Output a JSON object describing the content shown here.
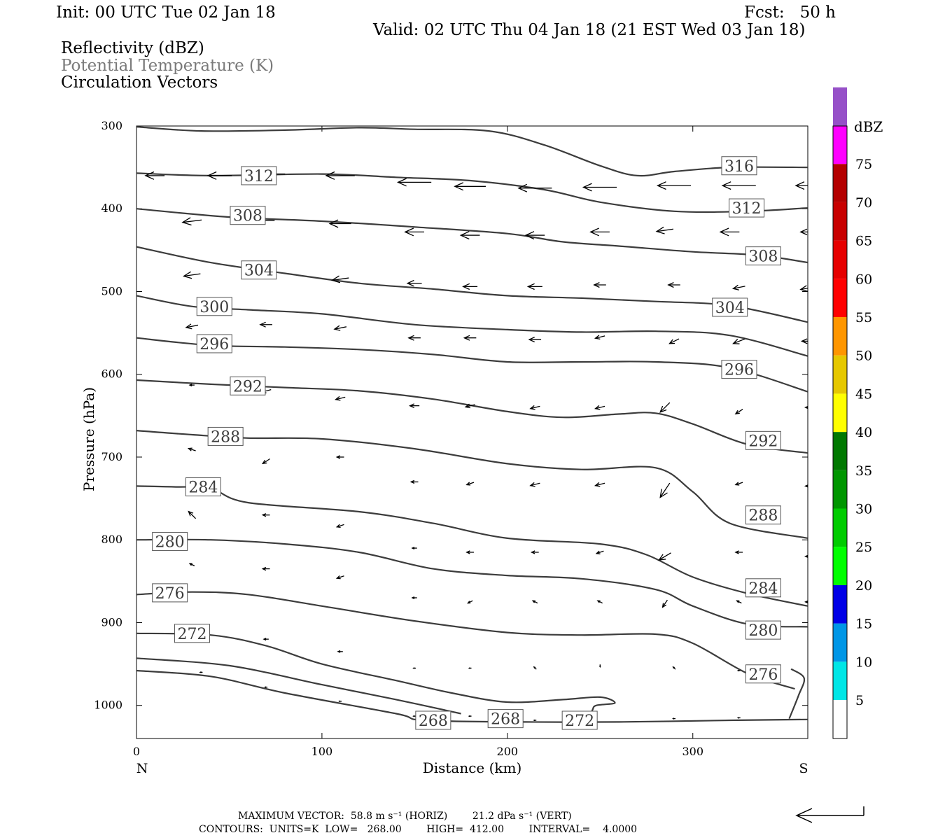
{
  "header": {
    "init": "Init: 00 UTC Tue 02 Jan 18",
    "fcst": "Fcst:   50 h",
    "valid": "Valid: 02 UTC Thu 04 Jan 18 (21 EST Wed 03 Jan 18)"
  },
  "fields": [
    {
      "label": "Reflectivity (dBZ)",
      "color": "#000000"
    },
    {
      "label": "Potential Temperature (K)",
      "color": "#7a7a7a"
    },
    {
      "label": "Circulation Vectors",
      "color": "#000000"
    }
  ],
  "footer": {
    "max_vector": "MAXIMUM VECTOR:  58.8 m s⁻¹ (HORIZ)        21.2 dPa s⁻¹ (VERT)",
    "contours": "CONTOURS:  UNITS=K  LOW=   268.00        HIGH=  412.00        INTERVAL=    4.0000"
  },
  "chart_data": {
    "type": "line",
    "xlabel": "Distance (km)",
    "ylabel": "Pressure (hPa)",
    "xlim": [
      0,
      362
    ],
    "ylim": [
      1040,
      300
    ],
    "x_ticks": [
      0,
      100,
      200,
      300
    ],
    "y_ticks": [
      300,
      400,
      500,
      600,
      700,
      800,
      900,
      1000
    ],
    "x_end_labels": {
      "left": "N",
      "right": "S"
    },
    "colorbar": {
      "title": "dBZ",
      "ticks": [
        5,
        10,
        15,
        20,
        25,
        30,
        35,
        40,
        45,
        50,
        55,
        60,
        65,
        70,
        75
      ],
      "colors": [
        "#00e6e6",
        "#0096e6",
        "#0000e6",
        "#00ff00",
        "#00cc00",
        "#009600",
        "#007800",
        "#ffff00",
        "#e6c800",
        "#ff9600",
        "#ff0000",
        "#e60000",
        "#c80000",
        "#b40000",
        "#ff00ff",
        "#9650c8"
      ]
    },
    "series": [
      {
        "label": "316",
        "points": [
          [
            0,
            301
          ],
          [
            35,
            306
          ],
          [
            80,
            305
          ],
          [
            120,
            302
          ],
          [
            150,
            304
          ],
          [
            190,
            306
          ],
          [
            220,
            323
          ],
          [
            250,
            348
          ],
          [
            270,
            360
          ],
          [
            290,
            355
          ],
          [
            320,
            350
          ],
          [
            362,
            350
          ]
        ],
        "labels_at": [
          [
            325,
            348
          ]
        ]
      },
      {
        "label": "312",
        "points": [
          [
            0,
            357
          ],
          [
            40,
            360
          ],
          [
            100,
            358
          ],
          [
            140,
            362
          ],
          [
            180,
            366
          ],
          [
            220,
            377
          ],
          [
            250,
            392
          ],
          [
            290,
            403
          ],
          [
            330,
            403
          ],
          [
            362,
            399
          ]
        ],
        "labels_at": [
          [
            66,
            360
          ],
          [
            329,
            399
          ]
        ]
      },
      {
        "label": "308",
        "points": [
          [
            0,
            400
          ],
          [
            50,
            410
          ],
          [
            100,
            415
          ],
          [
            150,
            422
          ],
          [
            200,
            430
          ],
          [
            230,
            440
          ],
          [
            260,
            445
          ],
          [
            300,
            452
          ],
          [
            335,
            456
          ],
          [
            362,
            465
          ]
        ],
        "labels_at": [
          [
            60,
            408
          ],
          [
            338,
            457
          ]
        ]
      },
      {
        "label": "304",
        "points": [
          [
            0,
            446
          ],
          [
            40,
            465
          ],
          [
            80,
            478
          ],
          [
            120,
            490
          ],
          [
            160,
            497
          ],
          [
            200,
            505
          ],
          [
            240,
            508
          ],
          [
            280,
            512
          ],
          [
            320,
            517
          ],
          [
            362,
            537
          ]
        ],
        "labels_at": [
          [
            66,
            474
          ],
          [
            320,
            519
          ]
        ]
      },
      {
        "label": "300",
        "points": [
          [
            0,
            505
          ],
          [
            30,
            518
          ],
          [
            60,
            522
          ],
          [
            100,
            527
          ],
          [
            150,
            540
          ],
          [
            200,
            546
          ],
          [
            240,
            549
          ],
          [
            280,
            548
          ],
          [
            320,
            553
          ],
          [
            362,
            578
          ]
        ],
        "labels_at": [
          [
            42,
            518
          ]
        ]
      },
      {
        "label": "296",
        "points": [
          [
            0,
            556
          ],
          [
            40,
            565
          ],
          [
            80,
            567
          ],
          [
            120,
            570
          ],
          [
            160,
            576
          ],
          [
            200,
            585
          ],
          [
            240,
            585
          ],
          [
            280,
            585
          ],
          [
            320,
            592
          ],
          [
            362,
            621
          ]
        ],
        "labels_at": [
          [
            42,
            563
          ],
          [
            325,
            594
          ]
        ]
      },
      {
        "label": "292",
        "points": [
          [
            0,
            607
          ],
          [
            40,
            612
          ],
          [
            80,
            616
          ],
          [
            120,
            620
          ],
          [
            160,
            630
          ],
          [
            200,
            645
          ],
          [
            230,
            652
          ],
          [
            260,
            648
          ],
          [
            280,
            647
          ],
          [
            300,
            660
          ],
          [
            330,
            685
          ],
          [
            362,
            695
          ]
        ],
        "labels_at": [
          [
            60,
            614
          ],
          [
            338,
            680
          ]
        ]
      },
      {
        "label": "288",
        "points": [
          [
            0,
            668
          ],
          [
            30,
            673
          ],
          [
            60,
            677
          ],
          [
            100,
            678
          ],
          [
            150,
            690
          ],
          [
            200,
            708
          ],
          [
            240,
            715
          ],
          [
            280,
            713
          ],
          [
            300,
            742
          ],
          [
            320,
            780
          ],
          [
            362,
            798
          ]
        ],
        "labels_at": [
          [
            48,
            675
          ],
          [
            338,
            770
          ]
        ]
      },
      {
        "label": "284",
        "points": [
          [
            0,
            735
          ],
          [
            20,
            736
          ],
          [
            40,
            738
          ],
          [
            60,
            755
          ],
          [
            120,
            766
          ],
          [
            160,
            780
          ],
          [
            200,
            798
          ],
          [
            250,
            805
          ],
          [
            275,
            818
          ],
          [
            300,
            845
          ],
          [
            330,
            865
          ],
          [
            362,
            880
          ]
        ],
        "labels_at": [
          [
            36,
            736
          ],
          [
            338,
            858
          ]
        ]
      },
      {
        "label": "280",
        "points": [
          [
            0,
            800
          ],
          [
            40,
            800
          ],
          [
            80,
            805
          ],
          [
            120,
            815
          ],
          [
            160,
            835
          ],
          [
            200,
            843
          ],
          [
            240,
            847
          ],
          [
            280,
            860
          ],
          [
            300,
            880
          ],
          [
            330,
            902
          ],
          [
            362,
            905
          ]
        ],
        "labels_at": [
          [
            18,
            802
          ],
          [
            338,
            909
          ]
        ]
      },
      {
        "label": "276",
        "points": [
          [
            0,
            866
          ],
          [
            30,
            863
          ],
          [
            60,
            866
          ],
          [
            100,
            880
          ],
          [
            150,
            898
          ],
          [
            200,
            912
          ],
          [
            240,
            915
          ],
          [
            280,
            914
          ],
          [
            300,
            925
          ],
          [
            330,
            962
          ],
          [
            355,
            980
          ]
        ],
        "labels_at": [
          [
            18,
            864
          ],
          [
            338,
            962
          ]
        ]
      },
      {
        "label": "272",
        "points": [
          [
            0,
            913
          ],
          [
            40,
            915
          ],
          [
            70,
            928
          ],
          [
            100,
            950
          ],
          [
            140,
            970
          ],
          [
            170,
            985
          ],
          [
            200,
            996
          ],
          [
            230,
            993
          ],
          [
            250,
            990
          ],
          [
            258,
            997
          ],
          [
            248,
            1000
          ],
          [
            246,
            1005
          ],
          [
            245,
            1012
          ]
        ],
        "labels_at": [
          [
            30,
            913
          ],
          [
            239,
            1018
          ]
        ]
      },
      {
        "label": "268",
        "points": [
          [
            0,
            958
          ],
          [
            40,
            965
          ],
          [
            80,
            985
          ],
          [
            140,
            1010
          ],
          [
            155,
            1018
          ],
          [
            210,
            1020
          ],
          [
            260,
            1020
          ],
          [
            320,
            1018
          ],
          [
            362,
            1017
          ]
        ],
        "labels_at": [
          [
            160,
            1018
          ],
          [
            199,
            1016
          ]
        ]
      },
      {
        "label": "",
        "points": [
          [
            0,
            943
          ],
          [
            50,
            952
          ],
          [
            100,
            975
          ],
          [
            140,
            993
          ],
          [
            175,
            1010
          ]
        ],
        "labels_at": []
      },
      {
        "label": "",
        "points": [
          [
            352,
            1016
          ],
          [
            357,
            988
          ],
          [
            360,
            967
          ],
          [
            353,
            956
          ]
        ],
        "labels_at": []
      }
    ],
    "vectors": [
      [
        10,
        360,
        -8,
        0
      ],
      [
        45,
        360,
        -10,
        0
      ],
      [
        75,
        358,
        -8,
        0
      ],
      [
        110,
        360,
        -12,
        0
      ],
      [
        150,
        368,
        -14,
        0
      ],
      [
        180,
        373,
        -13,
        0
      ],
      [
        215,
        375,
        -14,
        0
      ],
      [
        250,
        374,
        -14,
        0
      ],
      [
        290,
        372,
        -14,
        0
      ],
      [
        325,
        372,
        -14,
        0
      ],
      [
        362,
        372,
        -10,
        0
      ],
      [
        30,
        415,
        -8,
        1
      ],
      [
        70,
        414,
        -7,
        0
      ],
      [
        110,
        418,
        -9,
        0
      ],
      [
        150,
        428,
        -8,
        0
      ],
      [
        180,
        432,
        -8,
        0
      ],
      [
        215,
        432,
        -8,
        0
      ],
      [
        250,
        428,
        -8,
        0
      ],
      [
        285,
        426,
        -7,
        1
      ],
      [
        320,
        428,
        -8,
        0
      ],
      [
        362,
        428,
        -6,
        0
      ],
      [
        30,
        480,
        -7,
        1
      ],
      [
        70,
        477,
        -7,
        0
      ],
      [
        110,
        485,
        -7,
        1
      ],
      [
        150,
        490,
        -6,
        0
      ],
      [
        180,
        494,
        -6,
        0
      ],
      [
        215,
        494,
        -6,
        0
      ],
      [
        250,
        492,
        -5,
        0
      ],
      [
        290,
        492,
        -5,
        0
      ],
      [
        325,
        495,
        -5,
        1
      ],
      [
        362,
        496,
        -6,
        1
      ],
      [
        30,
        542,
        -5,
        1
      ],
      [
        70,
        540,
        -5,
        0
      ],
      [
        110,
        544,
        -5,
        1
      ],
      [
        150,
        556,
        -5,
        0
      ],
      [
        180,
        556,
        -5,
        0
      ],
      [
        215,
        558,
        -5,
        0
      ],
      [
        250,
        555,
        -4,
        1
      ],
      [
        290,
        560,
        -4,
        2
      ],
      [
        325,
        560,
        -5,
        2
      ],
      [
        362,
        560,
        -5,
        0
      ],
      [
        30,
        613,
        -2,
        0
      ],
      [
        70,
        620,
        -4,
        1
      ],
      [
        110,
        629,
        -4,
        1
      ],
      [
        150,
        638,
        -4,
        0
      ],
      [
        180,
        638,
        -4,
        1
      ],
      [
        215,
        640,
        -4,
        1
      ],
      [
        250,
        640,
        -4,
        1
      ],
      [
        285,
        640,
        -4,
        4
      ],
      [
        325,
        645,
        -3,
        2
      ],
      [
        362,
        640,
        -2,
        0
      ],
      [
        30,
        691,
        -3,
        -1
      ],
      [
        70,
        705,
        -3,
        2
      ],
      [
        110,
        700,
        -3,
        0
      ],
      [
        150,
        730,
        -3,
        0
      ],
      [
        180,
        732,
        -3,
        1
      ],
      [
        215,
        733,
        -4,
        1
      ],
      [
        250,
        733,
        -4,
        1
      ],
      [
        285,
        740,
        -4,
        6
      ],
      [
        325,
        732,
        -3,
        1
      ],
      [
        362,
        735,
        -2,
        0
      ],
      [
        30,
        770,
        -3,
        -3
      ],
      [
        70,
        770,
        -3,
        0
      ],
      [
        110,
        783,
        -3,
        1
      ],
      [
        150,
        810,
        -2,
        0
      ],
      [
        180,
        815,
        -3,
        0
      ],
      [
        215,
        815,
        -3,
        0
      ],
      [
        250,
        815,
        -3,
        1
      ],
      [
        285,
        820,
        -5,
        3
      ],
      [
        325,
        815,
        -3,
        0
      ],
      [
        362,
        820,
        -2,
        0
      ],
      [
        30,
        830,
        -2,
        -1
      ],
      [
        70,
        835,
        -3,
        0
      ],
      [
        110,
        845,
        -3,
        1
      ],
      [
        150,
        870,
        -2,
        0
      ],
      [
        180,
        875,
        -2,
        1
      ],
      [
        215,
        875,
        -2,
        -1
      ],
      [
        250,
        875,
        -2,
        -1
      ],
      [
        285,
        877,
        -2,
        3
      ],
      [
        325,
        875,
        -2,
        -1
      ],
      [
        362,
        875,
        -2,
        0
      ],
      [
        30,
        918,
        -2,
        -1
      ],
      [
        70,
        920,
        -2,
        0
      ],
      [
        110,
        935,
        -2,
        0
      ],
      [
        150,
        955,
        -1,
        0
      ],
      [
        180,
        955,
        -1,
        0
      ],
      [
        215,
        955,
        -1,
        -1
      ],
      [
        250,
        952,
        0,
        1
      ],
      [
        290,
        955,
        -1,
        -1
      ],
      [
        325,
        958,
        -1,
        0
      ],
      [
        35,
        960,
        -1,
        0
      ],
      [
        70,
        978,
        -1,
        0
      ],
      [
        110,
        995,
        -1,
        0
      ],
      [
        150,
        1013,
        -1,
        0
      ],
      [
        180,
        1013,
        -1,
        0
      ],
      [
        215,
        1018,
        -1,
        0
      ],
      [
        290,
        1016,
        -1,
        0
      ],
      [
        325,
        1015,
        -1,
        0
      ]
    ]
  }
}
